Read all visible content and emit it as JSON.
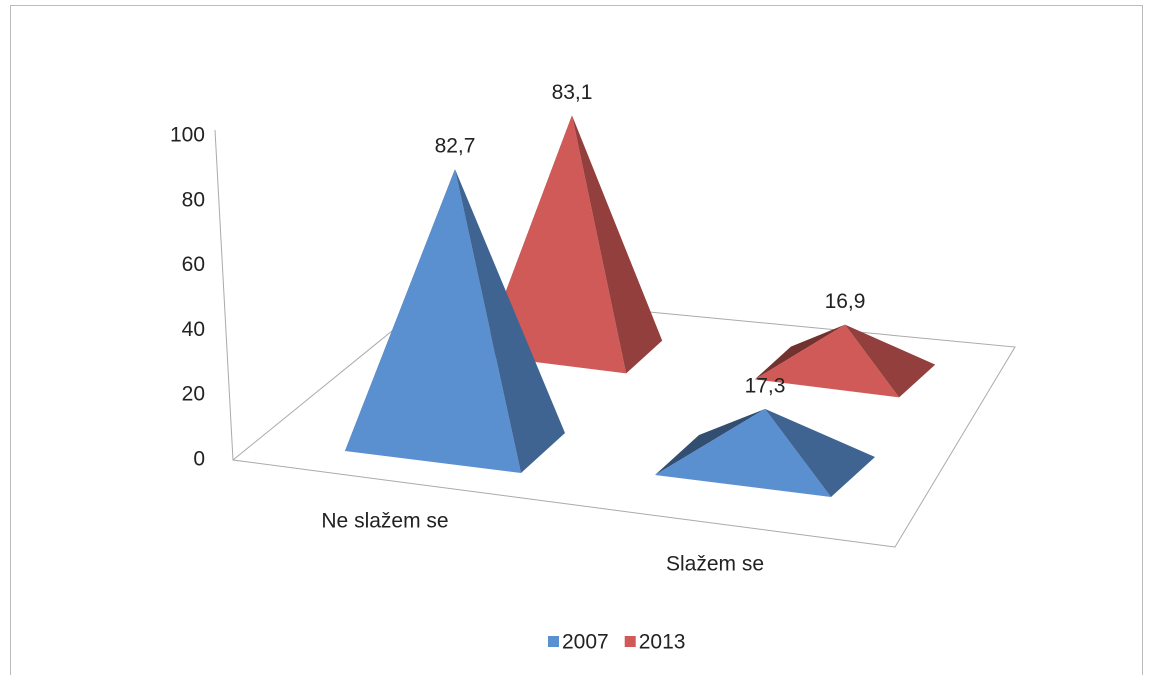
{
  "chart_data": {
    "type": "pyramid",
    "categories": [
      "Ne slažem se",
      "Slažem se"
    ],
    "series": [
      {
        "name": "2007",
        "color": "#5a8fd0",
        "values": [
          82.7,
          17.3
        ],
        "value_labels": [
          "82,7",
          "17,3"
        ]
      },
      {
        "name": "2013",
        "color": "#d05a57",
        "values": [
          83.1,
          16.9
        ],
        "value_labels": [
          "83,1",
          "16,9"
        ]
      }
    ],
    "ylim": [
      0,
      100
    ],
    "yticks": [
      0,
      20,
      40,
      60,
      80,
      100
    ],
    "grid": false,
    "legend": "bottom"
  }
}
